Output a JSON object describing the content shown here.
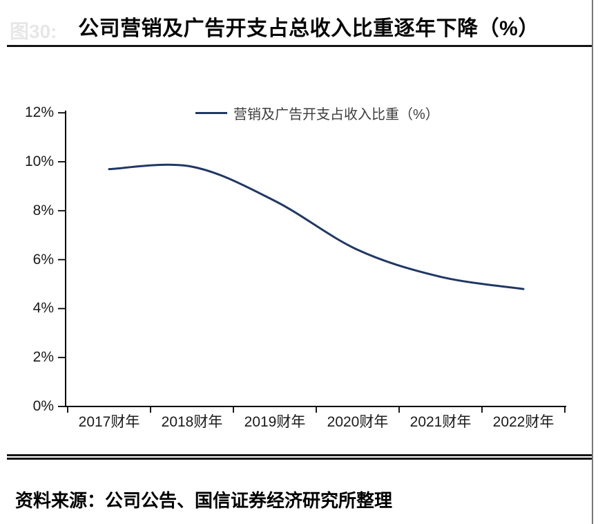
{
  "page": {
    "erased_label": "图30:",
    "title": "公司营销及广告开支占总收入比重逐年下降（%）",
    "source_note": "资料来源：公司公告、国信证券经济研究所整理"
  },
  "chart_data": {
    "type": "line",
    "title": "公司营销及广告开支占总收入比重逐年下降（%）",
    "categories": [
      "2017财年",
      "2018财年",
      "2019财年",
      "2020财年",
      "2021财年",
      "2022财年"
    ],
    "series": [
      {
        "name": "营销及广告开支占收入比重（%）",
        "values": [
          9.7,
          9.8,
          8.4,
          6.4,
          5.3,
          4.8
        ]
      }
    ],
    "ytick_labels": [
      "12%",
      "10%",
      "8%",
      "6%",
      "4%",
      "2%",
      "0%"
    ],
    "ytick_values": [
      12,
      10,
      8,
      6,
      4,
      2,
      0
    ],
    "ylim": [
      0,
      12
    ],
    "xlabel": "",
    "ylabel": "",
    "grid": false,
    "smooth": true,
    "legend_position": "top-center",
    "line_color": "#1f3864",
    "axis_color": "#000000"
  }
}
